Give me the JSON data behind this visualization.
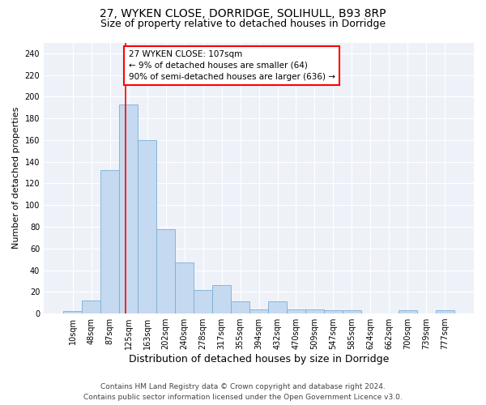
{
  "title_line1": "27, WYKEN CLOSE, DORRIDGE, SOLIHULL, B93 8RP",
  "title_line2": "Size of property relative to detached houses in Dorridge",
  "xlabel": "Distribution of detached houses by size in Dorridge",
  "ylabel": "Number of detached properties",
  "bar_labels": [
    "10sqm",
    "48sqm",
    "87sqm",
    "125sqm",
    "163sqm",
    "202sqm",
    "240sqm",
    "278sqm",
    "317sqm",
    "355sqm",
    "394sqm",
    "432sqm",
    "470sqm",
    "509sqm",
    "547sqm",
    "585sqm",
    "624sqm",
    "662sqm",
    "700sqm",
    "739sqm",
    "777sqm"
  ],
  "bar_heights": [
    2,
    12,
    132,
    193,
    160,
    78,
    47,
    22,
    26,
    11,
    4,
    11,
    4,
    4,
    3,
    3,
    0,
    0,
    3,
    0,
    3
  ],
  "bar_color": "#c5d9f0",
  "bar_edge_color": "#7bafd4",
  "vline_x_index": 2.85,
  "vline_color": "red",
  "annotation_text": "27 WYKEN CLOSE: 107sqm\n← 9% of detached houses are smaller (64)\n90% of semi-detached houses are larger (636) →",
  "annotation_box_color": "white",
  "annotation_box_edgecolor": "red",
  "ylim": [
    0,
    250
  ],
  "yticks": [
    0,
    20,
    40,
    60,
    80,
    100,
    120,
    140,
    160,
    180,
    200,
    220,
    240
  ],
  "footer_line1": "Contains HM Land Registry data © Crown copyright and database right 2024.",
  "footer_line2": "Contains public sector information licensed under the Open Government Licence v3.0.",
  "plot_bg_color": "#eef2f8",
  "grid_color": "white",
  "title1_fontsize": 10,
  "title2_fontsize": 9,
  "ylabel_fontsize": 8,
  "xlabel_fontsize": 9,
  "tick_fontsize": 7,
  "footer_fontsize": 6.5,
  "annotation_fontsize": 7.5
}
